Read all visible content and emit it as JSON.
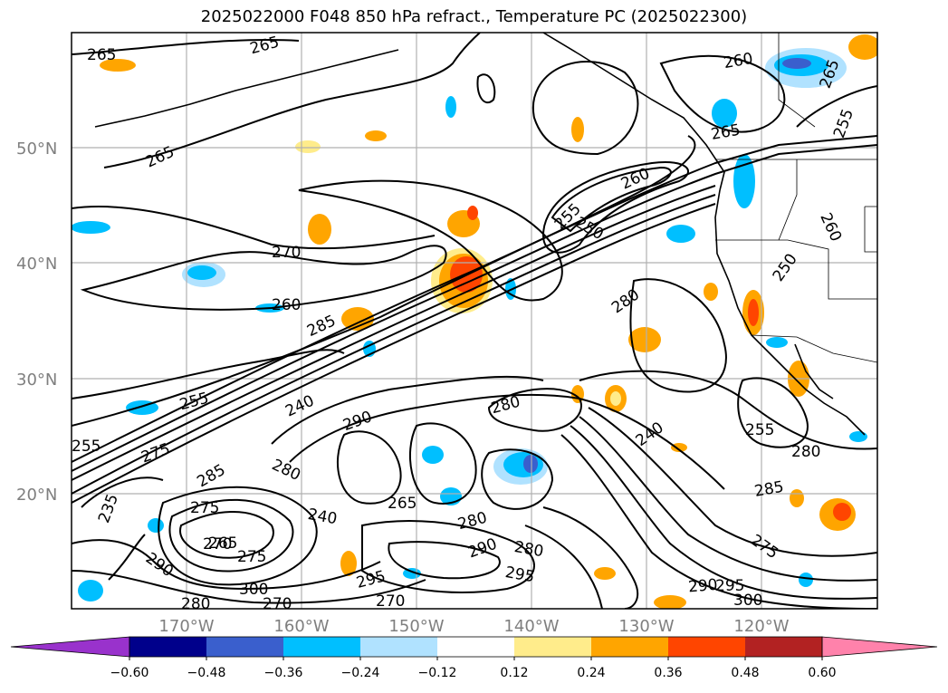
{
  "title": "2025022000 F048 850 hPa refract., Temperature PC (2025022300)",
  "latitude_labels": [
    "50°N",
    "40°N",
    "30°N",
    "20°N"
  ],
  "longitude_labels": [
    "170°W",
    "160°W",
    "150°W",
    "140°W",
    "130°W",
    "120°W"
  ],
  "colorbar": {
    "ticks": [
      "−0.60",
      "−0.48",
      "−0.36",
      "−0.24",
      "−0.12",
      "0.12",
      "0.24",
      "0.36",
      "0.48",
      "0.60"
    ],
    "colors": [
      "#9932cc",
      "#00008b",
      "#3a5fcd",
      "#00bfff",
      "#b0e2ff",
      "#ffffff",
      "#ffec8b",
      "#ffa500",
      "#ff4500",
      "#b22222",
      "#ff82ab"
    ]
  },
  "contour_labels": [
    "265",
    "265",
    "265",
    "260",
    "265",
    "255",
    "260",
    "255",
    "250",
    "265",
    "260",
    "270",
    "250",
    "260",
    "285",
    "280",
    "255",
    "240",
    "290",
    "280",
    "255",
    "275",
    "285",
    "280",
    "265",
    "275",
    "240",
    "235",
    "240",
    "255",
    "280",
    "285",
    "280",
    "290",
    "270",
    "275",
    "290",
    "295",
    "300",
    "270",
    "280",
    "295",
    "290"
  ],
  "shading_colors": {
    "light_blue": "#b0e2ff",
    "blue": "#00bfff",
    "dark_blue": "#3a5fcd",
    "yellow": "#ffec8b",
    "orange": "#ffa500",
    "red": "#ff4500"
  }
}
